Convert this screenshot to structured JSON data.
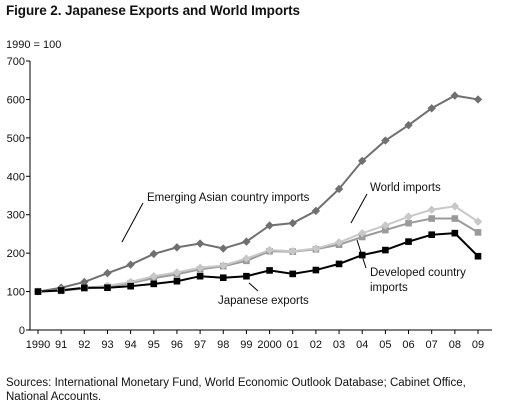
{
  "header": {
    "title": "Figure 2. Japanese Exports and World Imports",
    "unit_note": "1990 = 100"
  },
  "footer": {
    "source": "Sources: International Monetary Fund, World Economic Outlook Database; Cabinet Office, National Accounts."
  },
  "chart_data": {
    "type": "line",
    "title": "Figure 2. Japanese Exports and World Imports",
    "xlabel": "",
    "ylabel": "1990 = 100",
    "ylim": [
      0,
      700
    ],
    "yticks": [
      0,
      100,
      200,
      300,
      400,
      500,
      600,
      700
    ],
    "grid": false,
    "legend": "inline annotations",
    "categories": [
      "1990",
      "91",
      "92",
      "93",
      "94",
      "95",
      "96",
      "97",
      "98",
      "99",
      "2000",
      "01",
      "02",
      "03",
      "04",
      "05",
      "06",
      "07",
      "08",
      "09"
    ],
    "series": [
      {
        "name": "Emerging Asian country imports",
        "color": "#707070",
        "marker": "diamond",
        "values": [
          100,
          110,
          125,
          148,
          170,
          198,
          215,
          225,
          212,
          230,
          272,
          278,
          310,
          367,
          440,
          493,
          533,
          577,
          610,
          600
        ]
      },
      {
        "name": "World imports",
        "color": "#c8c8c8",
        "marker": "diamond",
        "values": [
          100,
          104,
          110,
          115,
          125,
          140,
          150,
          162,
          168,
          186,
          208,
          205,
          212,
          228,
          252,
          272,
          295,
          313,
          322,
          282
        ]
      },
      {
        "name": "Developed country imports",
        "color": "#9a9a9a",
        "marker": "square",
        "values": [
          100,
          102,
          108,
          112,
          122,
          135,
          145,
          158,
          166,
          180,
          205,
          204,
          210,
          222,
          242,
          260,
          278,
          290,
          290,
          254
        ]
      },
      {
        "name": "Japanese exports",
        "color": "#000000",
        "marker": "square",
        "values": [
          100,
          103,
          110,
          110,
          114,
          120,
          127,
          140,
          136,
          140,
          155,
          146,
          156,
          172,
          195,
          208,
          230,
          248,
          252,
          192
        ]
      }
    ],
    "annotations": [
      {
        "text": "Emerging Asian country imports",
        "series": "Emerging Asian country imports"
      },
      {
        "text": "World imports",
        "series": "World imports"
      },
      {
        "text": "Developed country",
        "series": "Developed country imports"
      },
      {
        "text": "imports",
        "series": "Developed country imports"
      },
      {
        "text": "Japanese exports",
        "series": "Japanese exports"
      }
    ]
  }
}
